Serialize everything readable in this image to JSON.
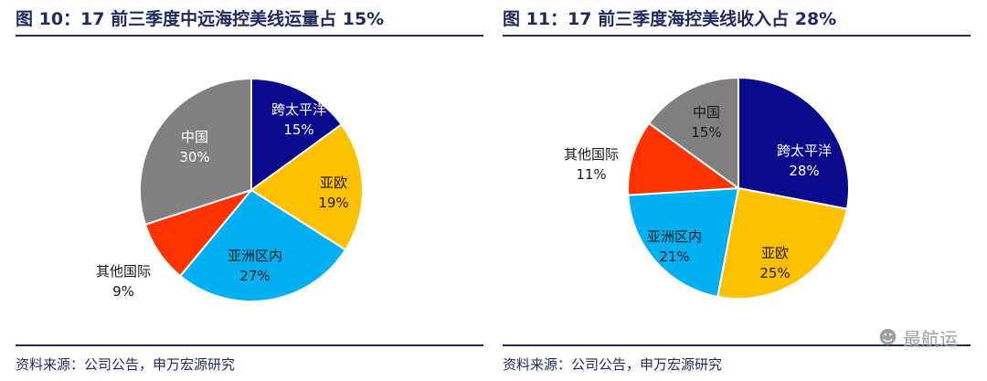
{
  "panels": [
    {
      "title": "图 10：17 前三季度中远海控美线运量占 15%",
      "source": "资料来源：公司公告，申万宏源研究"
    },
    {
      "title": "图 11：17 前三季度海控美线收入占 28%",
      "source": "资料来源：公司公告，申万宏源研究"
    }
  ],
  "watermark": {
    "icon": "wechat-icon",
    "text": "最航运"
  },
  "chart_data": [
    {
      "type": "pie",
      "title": "图 10：17 前三季度中远海控美线运量占 15%",
      "slices": [
        {
          "label": "跨太平洋",
          "value": 15,
          "value_label": "15%",
          "color": "#0a0a8c"
        },
        {
          "label": "亚欧",
          "value": 19,
          "value_label": "19%",
          "color": "#ffc000"
        },
        {
          "label": "亚洲区内",
          "value": 27,
          "value_label": "27%",
          "color": "#00b0f0"
        },
        {
          "label": "其他国际",
          "value": 9,
          "value_label": "9%",
          "color": "#ff3300"
        },
        {
          "label": "中国",
          "value": 30,
          "value_label": "30%",
          "color": "#808080"
        }
      ]
    },
    {
      "type": "pie",
      "title": "图 11：17 前三季度海控美线收入占 28%",
      "slices": [
        {
          "label": "跨太平洋",
          "value": 28,
          "value_label": "28%",
          "color": "#0a0a8c"
        },
        {
          "label": "亚欧",
          "value": 25,
          "value_label": "25%",
          "color": "#ffc000"
        },
        {
          "label": "亚洲区内",
          "value": 21,
          "value_label": "21%",
          "color": "#00b0f0"
        },
        {
          "label": "其他国际",
          "value": 11,
          "value_label": "11%",
          "color": "#ff3300"
        },
        {
          "label": "中国",
          "value": 15,
          "value_label": "15%",
          "color": "#808080"
        }
      ]
    }
  ]
}
